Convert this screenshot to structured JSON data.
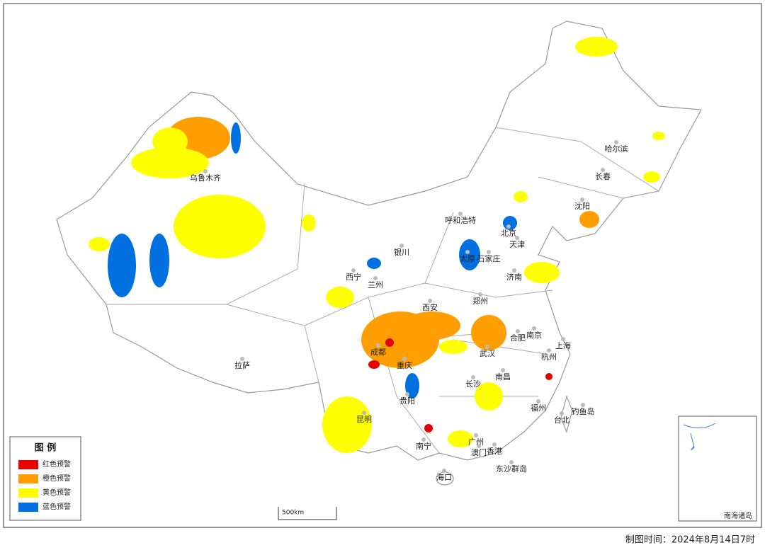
{
  "legend": {
    "title": "图 例",
    "items": [
      {
        "label": "红色预警",
        "color": "#e60000"
      },
      {
        "label": "橙色预警",
        "color": "#ff9e00"
      },
      {
        "label": "黄色预警",
        "color": "#ffff00"
      },
      {
        "label": "蓝色预警",
        "color": "#0070e0"
      }
    ]
  },
  "cities": [
    "乌鲁木齐",
    "拉萨",
    "西宁",
    "兰州",
    "银川",
    "呼和浩特",
    "北京",
    "天津",
    "石家庄",
    "太原",
    "济南",
    "郑州",
    "西安",
    "成都",
    "重庆",
    "贵阳",
    "昆明",
    "南宁",
    "武汉",
    "长沙",
    "南昌",
    "合肥",
    "南京",
    "上海",
    "杭州",
    "福州",
    "台北",
    "钓鱼岛",
    "广州",
    "澳门",
    "香港",
    "海口",
    "东沙群岛",
    "沈阳",
    "长春",
    "哈尔滨"
  ],
  "scale_label": "500km",
  "inset_label": "南海诸岛",
  "footer": "制图时间：2024年8月14日7时"
}
